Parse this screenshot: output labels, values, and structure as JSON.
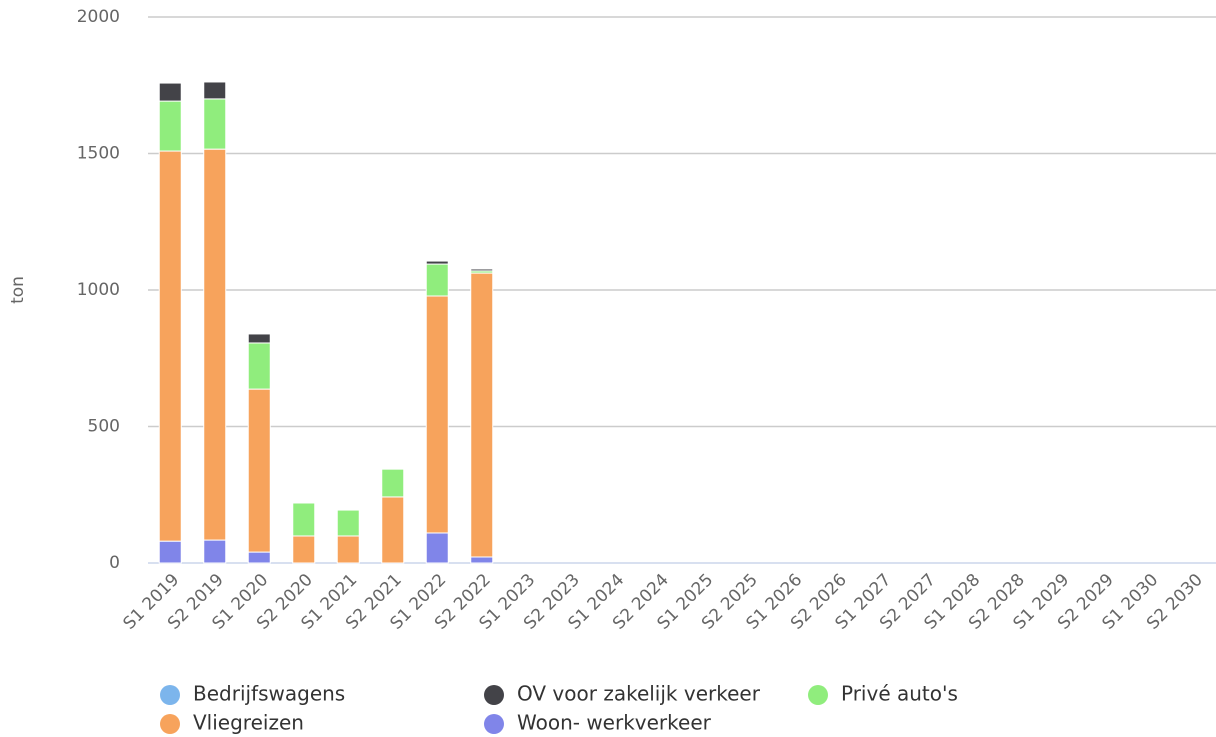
{
  "chart_data": {
    "type": "stacked_bar",
    "y_label": "ton",
    "categories": [
      "S1 2019",
      "S2 2019",
      "S1 2020",
      "S2 2020",
      "S1 2021",
      "S2 2021",
      "S1 2022",
      "S2 2022",
      "S1 2023",
      "S2 2023",
      "S1 2024",
      "S2 2024",
      "S1 2025",
      "S2 2025",
      "S1 2026",
      "S2 2026",
      "S1 2027",
      "S2 2027",
      "S1 2028",
      "S2 2028",
      "S1 2029",
      "S2 2029",
      "S1 2030",
      "S2 2030"
    ],
    "series": [
      {
        "name": "Bedrijfswagens",
        "color": "#7cb5ec",
        "values": [
          0,
          0,
          0,
          0,
          0,
          0,
          0,
          0,
          null,
          null,
          null,
          null,
          null,
          null,
          null,
          null,
          null,
          null,
          null,
          null,
          null,
          null,
          null,
          null
        ]
      },
      {
        "name": "OV voor zakelijk verkeer",
        "color": "#434348",
        "values": [
          66,
          62,
          33,
          3,
          2,
          3,
          11,
          7,
          null,
          null,
          null,
          null,
          null,
          null,
          null,
          null,
          null,
          null,
          null,
          null,
          null,
          null,
          null,
          null
        ]
      },
      {
        "name": "Privé auto's",
        "color": "#90ed7d",
        "values": [
          183,
          184,
          169,
          121,
          95,
          102,
          117,
          8,
          null,
          null,
          null,
          null,
          null,
          null,
          null,
          null,
          null,
          null,
          null,
          null,
          null,
          null,
          null,
          null
        ]
      },
      {
        "name": "Vliegreizen",
        "color": "#f7a35c",
        "values": [
          1429,
          1432,
          597,
          99,
          99,
          242,
          868,
          1040,
          null,
          null,
          null,
          null,
          null,
          null,
          null,
          null,
          null,
          null,
          null,
          null,
          null,
          null,
          null,
          null
        ]
      },
      {
        "name": "Woon- werkverkeer",
        "color": "#8085e9",
        "values": [
          80,
          84,
          40,
          0,
          0,
          0,
          110,
          22,
          null,
          null,
          null,
          null,
          null,
          null,
          null,
          null,
          null,
          null,
          null,
          null,
          null,
          null,
          null,
          null
        ]
      }
    ],
    "ylim": [
      0,
      2000
    ],
    "yticks": [
      0,
      500,
      1000,
      1500,
      2000
    ],
    "grid": true,
    "legend": "bottom"
  }
}
